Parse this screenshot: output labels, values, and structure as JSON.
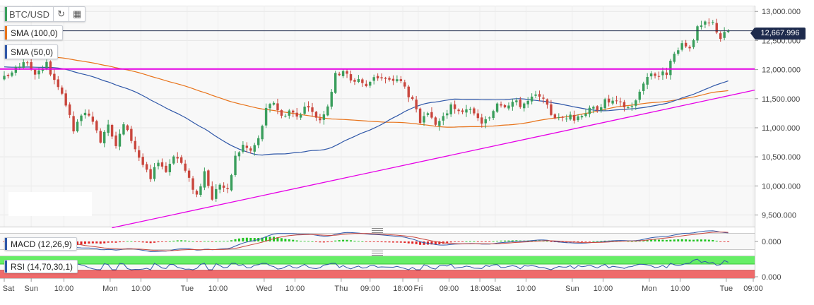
{
  "toolbar": {
    "symbol": "BTC/USD",
    "refresh_icon": "refresh-icon",
    "calendar_icon": "calendar-icon"
  },
  "indicators": {
    "sma100": {
      "label": "SMA (100,0)",
      "color": "#e8731a"
    },
    "sma50": {
      "label": "SMA (50,0)",
      "color": "#2f57a8"
    },
    "macd": {
      "label": "MACD (12,26,9)",
      "color": "#2f57a8"
    },
    "rsi": {
      "label": "RSI (14,70,30,1)",
      "color": "#2f57a8"
    }
  },
  "last_price": "12,667.996",
  "colors": {
    "up": "#3a9e5c",
    "down": "#c9463d",
    "resistance": "#e600e6",
    "trendline": "#e600e6",
    "price_line": "#1e2b4d",
    "plot_bg": "#f8f8f8",
    "rsi_overbought": "#66ee66",
    "rsi_oversold": "#ee6b6b"
  },
  "chart_data": {
    "type": "candlestick",
    "title": "",
    "ylim": [
      9300,
      13100
    ],
    "y_ticks": [
      "13,000.000",
      "12,500.000",
      "12,000.000",
      "11,500.000",
      "11,000.000",
      "10,500.000",
      "10,000.000",
      "9,500.000"
    ],
    "y_tick_values": [
      13000,
      12500,
      12000,
      11500,
      11000,
      10500,
      10000,
      9500
    ],
    "macd_ticks": [
      "0.000"
    ],
    "rsi_ticks": [
      "0.000"
    ],
    "x_ticks": [
      {
        "label": "Sat",
        "bar": 0
      },
      {
        "label": "Sun",
        "bar": 7
      },
      {
        "label": "10:00",
        "bar": 15.5
      },
      {
        "label": "Mon",
        "bar": 27.5
      },
      {
        "label": "10:00",
        "bar": 35.5
      },
      {
        "label": "Tue",
        "bar": 47.5
      },
      {
        "label": "10:00",
        "bar": 55.5
      },
      {
        "label": "Wed",
        "bar": 67.5
      },
      {
        "label": "10:00",
        "bar": 75.5
      },
      {
        "label": "Thu",
        "bar": 87.5
      },
      {
        "label": "09:00",
        "bar": 95
      },
      {
        "label": "18:00",
        "bar": 103.5
      },
      {
        "label": "Fri",
        "bar": 107.5
      },
      {
        "label": "09:00",
        "bar": 115.5
      },
      {
        "label": "18:00",
        "bar": 123.5
      },
      {
        "label": "Sat",
        "bar": 127.5
      },
      {
        "label": "10:00",
        "bar": 135.5
      },
      {
        "label": "Sun",
        "bar": 147.5
      },
      {
        "label": "10:00",
        "bar": 155.5
      },
      {
        "label": "Mon",
        "bar": 167.5
      },
      {
        "label": "10:00",
        "bar": 175.5
      },
      {
        "label": "Tue",
        "bar": 187.5
      },
      {
        "label": "09:00",
        "bar": 194.5
      }
    ],
    "resistance": 12010,
    "last_price": 12668,
    "trendline": {
      "from": [
        28,
        9280
      ],
      "to": [
        200,
        11720
      ]
    },
    "anchors": [
      [
        0,
        11850
      ],
      [
        3,
        12000
      ],
      [
        5,
        12150
      ],
      [
        8,
        11950
      ],
      [
        11,
        12100
      ],
      [
        13,
        11800
      ],
      [
        16,
        11400
      ],
      [
        18,
        10950
      ],
      [
        21,
        11300
      ],
      [
        23,
        11050
      ],
      [
        25,
        10800
      ],
      [
        27,
        11100
      ],
      [
        29,
        10700
      ],
      [
        31,
        11050
      ],
      [
        33,
        10800
      ],
      [
        35,
        10500
      ],
      [
        38,
        10100
      ],
      [
        40,
        10450
      ],
      [
        42,
        10250
      ],
      [
        44,
        10550
      ],
      [
        46,
        10400
      ],
      [
        48,
        10100
      ],
      [
        50,
        9850
      ],
      [
        52,
        10200
      ],
      [
        54,
        9800
      ],
      [
        56,
        10050
      ],
      [
        58,
        9900
      ],
      [
        60,
        10500
      ],
      [
        62,
        10700
      ],
      [
        64,
        10600
      ],
      [
        66,
        10800
      ],
      [
        68,
        11300
      ],
      [
        70,
        11450
      ],
      [
        72,
        11200
      ],
      [
        74,
        11300
      ],
      [
        76,
        11200
      ],
      [
        78,
        11350
      ],
      [
        80,
        11250
      ],
      [
        82,
        11150
      ],
      [
        84,
        11400
      ],
      [
        86,
        11900
      ],
      [
        88,
        12000
      ],
      [
        90,
        11800
      ],
      [
        92,
        11850
      ],
      [
        94,
        11700
      ],
      [
        96,
        11900
      ],
      [
        98,
        11850
      ],
      [
        100,
        11800
      ],
      [
        102,
        11850
      ],
      [
        104,
        11700
      ],
      [
        106,
        11450
      ],
      [
        108,
        11100
      ],
      [
        110,
        11200
      ],
      [
        112,
        11050
      ],
      [
        114,
        11200
      ],
      [
        116,
        11350
      ],
      [
        118,
        11250
      ],
      [
        120,
        11350
      ],
      [
        122,
        11200
      ],
      [
        124,
        11100
      ],
      [
        126,
        11150
      ],
      [
        128,
        11450
      ],
      [
        130,
        11400
      ],
      [
        132,
        11450
      ],
      [
        134,
        11400
      ],
      [
        136,
        11450
      ],
      [
        138,
        11550
      ],
      [
        140,
        11450
      ],
      [
        142,
        11250
      ],
      [
        144,
        11150
      ],
      [
        146,
        11200
      ],
      [
        148,
        11150
      ],
      [
        150,
        11250
      ],
      [
        152,
        11300
      ],
      [
        154,
        11350
      ],
      [
        156,
        11450
      ],
      [
        158,
        11450
      ],
      [
        160,
        11400
      ],
      [
        162,
        11350
      ],
      [
        164,
        11450
      ],
      [
        166,
        11800
      ],
      [
        168,
        11950
      ],
      [
        170,
        11900
      ],
      [
        172,
        11950
      ],
      [
        174,
        12250
      ],
      [
        176,
        12400
      ],
      [
        178,
        12400
      ],
      [
        180,
        12700
      ],
      [
        182,
        12780
      ],
      [
        184,
        12800
      ],
      [
        186,
        12550
      ],
      [
        188,
        12668
      ]
    ]
  }
}
